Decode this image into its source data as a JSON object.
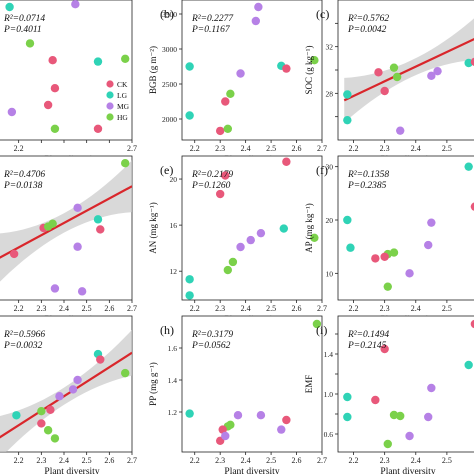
{
  "colors": {
    "CK": "#e8587a",
    "LG": "#2fd3b6",
    "MG": "#b681e6",
    "HG": "#7bd14a",
    "fit": "#d9262b",
    "band": "#c9c9c9",
    "panel_border": "#222222"
  },
  "legend": {
    "entries": [
      {
        "name": "CK",
        "color_key": "CK"
      },
      {
        "name": "LG",
        "color_key": "LG"
      },
      {
        "name": "MG",
        "color_key": "MG"
      },
      {
        "name": "HG",
        "color_key": "HG"
      }
    ],
    "placement": "bottom-right of panel a"
  },
  "chart_data": [
    {
      "id": "a",
      "type": "scatter",
      "letter": "",
      "stat_r2": "R²=0.0714",
      "stat_p": "P=0.4011",
      "xlabel": "Plant diversity",
      "ylabel": "",
      "xlim": [
        2.1,
        2.7
      ],
      "ylim": [
        0,
        10
      ],
      "xticks": [
        2.2,
        2.3,
        2.4,
        2.5,
        2.6,
        2.7
      ],
      "xtick_labels": [
        "2.2",
        "",
        "",
        "",
        "",
        "2.7"
      ],
      "yticks": [],
      "ytick_labels": [],
      "fit": false,
      "legend": true,
      "points": [
        {
          "x": 2.16,
          "y": 9.5,
          "g": "LG"
        },
        {
          "x": 2.45,
          "y": 9.7,
          "g": "MG"
        },
        {
          "x": 2.25,
          "y": 6.9,
          "g": "HG"
        },
        {
          "x": 2.35,
          "y": 5.7,
          "g": "CK"
        },
        {
          "x": 2.55,
          "y": 5.6,
          "g": "LG"
        },
        {
          "x": 2.67,
          "y": 5.8,
          "g": "HG"
        },
        {
          "x": 2.36,
          "y": 3.7,
          "g": "CK"
        },
        {
          "x": 2.17,
          "y": 2.0,
          "g": "MG"
        },
        {
          "x": 2.33,
          "y": 2.5,
          "g": "CK"
        },
        {
          "x": 2.36,
          "y": 0.8,
          "g": "HG"
        },
        {
          "x": 2.55,
          "y": 0.8,
          "g": "CK"
        }
      ]
    },
    {
      "id": "b",
      "type": "scatter",
      "letter": "(b)",
      "stat_r2": "R²=0.2277",
      "stat_p": "P=0.1167",
      "xlabel": "Plant diversity",
      "ylabel": "BGB (g m⁻²)",
      "xlim": [
        2.15,
        2.7
      ],
      "ylim": [
        1700,
        3700
      ],
      "xticks": [
        2.2,
        2.3,
        2.4,
        2.5,
        2.6,
        2.7
      ],
      "xtick_labels": [
        "2.2",
        "2.3",
        "2.4",
        "2.5",
        "2.6",
        "2.7"
      ],
      "yticks": [
        2000,
        2500,
        3000,
        3500
      ],
      "ytick_labels": [
        "2000",
        "2500",
        "3000",
        "3500"
      ],
      "fit": false,
      "legend": false,
      "points": [
        {
          "x": 2.45,
          "y": 3600,
          "g": "MG"
        },
        {
          "x": 2.44,
          "y": 3400,
          "g": "MG"
        },
        {
          "x": 2.18,
          "y": 2750,
          "g": "LG"
        },
        {
          "x": 2.38,
          "y": 2650,
          "g": "MG"
        },
        {
          "x": 2.54,
          "y": 2760,
          "g": "LG"
        },
        {
          "x": 2.56,
          "y": 2720,
          "g": "CK"
        },
        {
          "x": 2.67,
          "y": 2840,
          "g": "HG"
        },
        {
          "x": 2.34,
          "y": 2360,
          "g": "HG"
        },
        {
          "x": 2.32,
          "y": 2250,
          "g": "CK"
        },
        {
          "x": 2.18,
          "y": 2050,
          "g": "LG"
        },
        {
          "x": 2.3,
          "y": 1830,
          "g": "CK"
        },
        {
          "x": 2.33,
          "y": 1860,
          "g": "HG"
        }
      ]
    },
    {
      "id": "c",
      "type": "scatter",
      "letter": "(c)",
      "stat_r2": "R²=0.5762",
      "stat_p": "P=0.0042",
      "xlabel": "Plant diversity",
      "ylabel": "SOC (g kg⁻¹)",
      "xlim": [
        2.15,
        2.6
      ],
      "ylim": [
        24,
        36
      ],
      "xticks": [
        2.2,
        2.3,
        2.4,
        2.5
      ],
      "xtick_labels": [
        "2.2",
        "2.3",
        "2.4",
        "2.5"
      ],
      "yticks": [
        26,
        28,
        30,
        32,
        34
      ],
      "ytick_labels": [
        "",
        "28",
        "",
        "32",
        ""
      ],
      "fit": true,
      "fit_line": [
        [
          2.17,
          27.4
        ],
        [
          2.6,
          32.8
        ]
      ],
      "band_width": 1.6,
      "legend": false,
      "points": [
        {
          "x": 2.18,
          "y": 25.7,
          "g": "LG"
        },
        {
          "x": 2.18,
          "y": 27.9,
          "g": "LG"
        },
        {
          "x": 2.28,
          "y": 29.8,
          "g": "CK"
        },
        {
          "x": 2.3,
          "y": 28.2,
          "g": "CK"
        },
        {
          "x": 2.33,
          "y": 30.2,
          "g": "HG"
        },
        {
          "x": 2.34,
          "y": 29.4,
          "g": "HG"
        },
        {
          "x": 2.35,
          "y": 24.8,
          "g": "MG"
        },
        {
          "x": 2.45,
          "y": 29.5,
          "g": "MG"
        },
        {
          "x": 2.47,
          "y": 29.9,
          "g": "MG"
        },
        {
          "x": 2.57,
          "y": 30.6,
          "g": "LG"
        },
        {
          "x": 2.59,
          "y": 30.7,
          "g": "CK"
        }
      ]
    },
    {
      "id": "d",
      "type": "scatter",
      "letter": "",
      "stat_r2": "R²=0.4706",
      "stat_p": "P=0.0138",
      "xlabel": "Plant diversity",
      "ylabel": "",
      "xlim": [
        2.1,
        2.7
      ],
      "ylim": [
        0,
        10
      ],
      "xticks": [
        2.2,
        2.3,
        2.4,
        2.5,
        2.6,
        2.7
      ],
      "xtick_labels": [
        "2.2",
        "2.3",
        "2.4",
        "2.5",
        "2.6",
        "2.7"
      ],
      "yticks": [],
      "ytick_labels": [],
      "fit": true,
      "fit_line": [
        [
          2.1,
          2.8
        ],
        [
          2.7,
          7.9
        ]
      ],
      "band_width": 1.5,
      "legend": false,
      "points": [
        {
          "x": 2.67,
          "y": 9.5,
          "g": "HG"
        },
        {
          "x": 2.46,
          "y": 6.4,
          "g": "MG"
        },
        {
          "x": 2.55,
          "y": 5.6,
          "g": "LG"
        },
        {
          "x": 2.56,
          "y": 4.9,
          "g": "CK"
        },
        {
          "x": 2.31,
          "y": 5.0,
          "g": "CK"
        },
        {
          "x": 2.33,
          "y": 5.1,
          "g": "HG"
        },
        {
          "x": 2.35,
          "y": 5.3,
          "g": "HG"
        },
        {
          "x": 2.46,
          "y": 3.7,
          "g": "MG"
        },
        {
          "x": 2.18,
          "y": 3.2,
          "g": "CK"
        },
        {
          "x": 2.36,
          "y": 0.8,
          "g": "MG"
        },
        {
          "x": 2.48,
          "y": 0.6,
          "g": "MG"
        }
      ]
    },
    {
      "id": "e",
      "type": "scatter",
      "letter": "(e)",
      "stat_r2": "R²=0.2179",
      "stat_p": "P=0.1260",
      "xlabel": "Plant diversity",
      "ylabel": "AN (mg kg⁻¹)",
      "xlim": [
        2.15,
        2.7
      ],
      "ylim": [
        9.5,
        22
      ],
      "xticks": [
        2.2,
        2.3,
        2.4,
        2.5,
        2.6,
        2.7
      ],
      "xtick_labels": [
        "2.2",
        "2.3",
        "2.4",
        "2.5",
        "2.6",
        "2.7"
      ],
      "yticks": [
        12,
        16,
        20
      ],
      "ytick_labels": [
        "12",
        "16",
        "20"
      ],
      "fit": false,
      "legend": false,
      "points": [
        {
          "x": 2.56,
          "y": 21.5,
          "g": "CK"
        },
        {
          "x": 2.32,
          "y": 20.3,
          "g": "CK"
        },
        {
          "x": 2.3,
          "y": 18.7,
          "g": "CK"
        },
        {
          "x": 2.55,
          "y": 15.7,
          "g": "LG"
        },
        {
          "x": 2.46,
          "y": 15.3,
          "g": "MG"
        },
        {
          "x": 2.42,
          "y": 14.7,
          "g": "MG"
        },
        {
          "x": 2.38,
          "y": 14.1,
          "g": "MG"
        },
        {
          "x": 2.67,
          "y": 14.9,
          "g": "HG"
        },
        {
          "x": 2.35,
          "y": 12.8,
          "g": "HG"
        },
        {
          "x": 2.33,
          "y": 12.1,
          "g": "HG"
        },
        {
          "x": 2.18,
          "y": 11.3,
          "g": "LG"
        },
        {
          "x": 2.18,
          "y": 9.9,
          "g": "LG"
        }
      ]
    },
    {
      "id": "f",
      "type": "scatter",
      "letter": "(f)",
      "stat_r2": "R²=0.1358",
      "stat_p": "P=0.2385",
      "xlabel": "Plant diversity",
      "ylabel": "AP (mg kg⁻¹)",
      "xlim": [
        2.15,
        2.6
      ],
      "ylim": [
        5,
        32
      ],
      "xticks": [
        2.2,
        2.3,
        2.4,
        2.5
      ],
      "xtick_labels": [
        "2.2",
        "2.3",
        "2.4",
        "2.5"
      ],
      "yticks": [
        10,
        20,
        30
      ],
      "ytick_labels": [
        "10",
        "20",
        "30"
      ],
      "fit": false,
      "legend": false,
      "points": [
        {
          "x": 2.57,
          "y": 30.0,
          "g": "LG"
        },
        {
          "x": 2.59,
          "y": 22.5,
          "g": "CK"
        },
        {
          "x": 2.18,
          "y": 20.0,
          "g": "LG"
        },
        {
          "x": 2.45,
          "y": 19.5,
          "g": "MG"
        },
        {
          "x": 2.44,
          "y": 15.3,
          "g": "MG"
        },
        {
          "x": 2.19,
          "y": 14.8,
          "g": "LG"
        },
        {
          "x": 2.31,
          "y": 13.6,
          "g": "HG"
        },
        {
          "x": 2.33,
          "y": 13.9,
          "g": "HG"
        },
        {
          "x": 2.27,
          "y": 12.8,
          "g": "CK"
        },
        {
          "x": 2.3,
          "y": 13.1,
          "g": "CK"
        },
        {
          "x": 2.38,
          "y": 10.0,
          "g": "MG"
        },
        {
          "x": 2.31,
          "y": 7.5,
          "g": "HG"
        }
      ]
    },
    {
      "id": "g",
      "type": "scatter",
      "letter": "",
      "stat_r2": "R²=0.5966",
      "stat_p": "P=0.0032",
      "xlabel": "Plant diversity",
      "ylabel": "",
      "xlim": [
        2.1,
        2.7
      ],
      "ylim": [
        0,
        10
      ],
      "xticks": [
        2.2,
        2.3,
        2.4,
        2.5,
        2.6,
        2.7
      ],
      "xtick_labels": [
        "2.2",
        "2.3",
        "2.4",
        "2.5",
        "2.6",
        "2.7"
      ],
      "yticks": [],
      "ytick_labels": [],
      "fit": true,
      "fit_line": [
        [
          2.1,
          0.9
        ],
        [
          2.7,
          7.3
        ]
      ],
      "band_width": 1.4,
      "legend": false,
      "points": [
        {
          "x": 2.55,
          "y": 7.2,
          "g": "LG"
        },
        {
          "x": 2.56,
          "y": 6.8,
          "g": "CK"
        },
        {
          "x": 2.67,
          "y": 5.8,
          "g": "HG"
        },
        {
          "x": 2.46,
          "y": 5.3,
          "g": "MG"
        },
        {
          "x": 2.44,
          "y": 4.6,
          "g": "MG"
        },
        {
          "x": 2.38,
          "y": 4.1,
          "g": "MG"
        },
        {
          "x": 2.3,
          "y": 3.0,
          "g": "HG"
        },
        {
          "x": 2.34,
          "y": 3.1,
          "g": "CK"
        },
        {
          "x": 2.3,
          "y": 2.1,
          "g": "CK"
        },
        {
          "x": 2.33,
          "y": 1.6,
          "g": "HG"
        },
        {
          "x": 2.36,
          "y": 1.0,
          "g": "HG"
        },
        {
          "x": 2.19,
          "y": 2.7,
          "g": "LG"
        }
      ]
    },
    {
      "id": "h",
      "type": "scatter",
      "letter": "(h)",
      "stat_r2": "R²=0.3179",
      "stat_p": "P=0.0562",
      "xlabel": "Plant diversity",
      "ylabel": "PP (mg g⁻¹)",
      "xlim": [
        2.15,
        2.7
      ],
      "ylim": [
        0.95,
        1.8
      ],
      "xticks": [
        2.2,
        2.3,
        2.4,
        2.5,
        2.6,
        2.7
      ],
      "xtick_labels": [
        "2.2",
        "2.3",
        "2.4",
        "2.5",
        "2.6",
        "2.7"
      ],
      "yticks": [
        1.2,
        1.4,
        1.6
      ],
      "ytick_labels": [
        "1.2",
        "1.4",
        "1.6"
      ],
      "fit": false,
      "legend": false,
      "points": [
        {
          "x": 2.68,
          "y": 1.75,
          "g": "HG"
        },
        {
          "x": 2.37,
          "y": 1.18,
          "g": "MG"
        },
        {
          "x": 2.46,
          "y": 1.18,
          "g": "MG"
        },
        {
          "x": 2.56,
          "y": 1.15,
          "g": "CK"
        },
        {
          "x": 2.54,
          "y": 1.09,
          "g": "MG"
        },
        {
          "x": 2.33,
          "y": 1.11,
          "g": "HG"
        },
        {
          "x": 2.34,
          "y": 1.12,
          "g": "HG"
        },
        {
          "x": 2.31,
          "y": 1.09,
          "g": "CK"
        },
        {
          "x": 2.18,
          "y": 1.19,
          "g": "LG"
        },
        {
          "x": 2.3,
          "y": 1.02,
          "g": "CK"
        },
        {
          "x": 2.32,
          "y": 1.05,
          "g": "MG"
        }
      ]
    },
    {
      "id": "i",
      "type": "scatter",
      "letter": "(i)",
      "stat_r2": "R²=0.1494",
      "stat_p": "P=0.2145",
      "xlabel": "Plant diversity",
      "ylabel": "EMF",
      "xlim": [
        2.15,
        2.6
      ],
      "ylim": [
        0.42,
        1.78
      ],
      "xticks": [
        2.2,
        2.3,
        2.4,
        2.5
      ],
      "xtick_labels": [
        "2.2",
        "2.3",
        "2.4",
        "2.5"
      ],
      "yticks": [
        0.6,
        0.8,
        1.0,
        1.2,
        1.4,
        1.6
      ],
      "ytick_labels": [
        "0.6",
        "",
        "1.0",
        "",
        "1.4",
        ""
      ],
      "fit": false,
      "legend": false,
      "points": [
        {
          "x": 2.59,
          "y": 1.7,
          "g": "CK"
        },
        {
          "x": 2.3,
          "y": 1.45,
          "g": "CK"
        },
        {
          "x": 2.57,
          "y": 1.29,
          "g": "LG"
        },
        {
          "x": 2.45,
          "y": 1.06,
          "g": "MG"
        },
        {
          "x": 2.18,
          "y": 0.97,
          "g": "LG"
        },
        {
          "x": 2.27,
          "y": 0.94,
          "g": "CK"
        },
        {
          "x": 2.33,
          "y": 0.79,
          "g": "HG"
        },
        {
          "x": 2.35,
          "y": 0.78,
          "g": "HG"
        },
        {
          "x": 2.18,
          "y": 0.77,
          "g": "LG"
        },
        {
          "x": 2.44,
          "y": 0.77,
          "g": "MG"
        },
        {
          "x": 2.38,
          "y": 0.58,
          "g": "MG"
        },
        {
          "x": 2.31,
          "y": 0.5,
          "g": "HG"
        }
      ]
    }
  ]
}
